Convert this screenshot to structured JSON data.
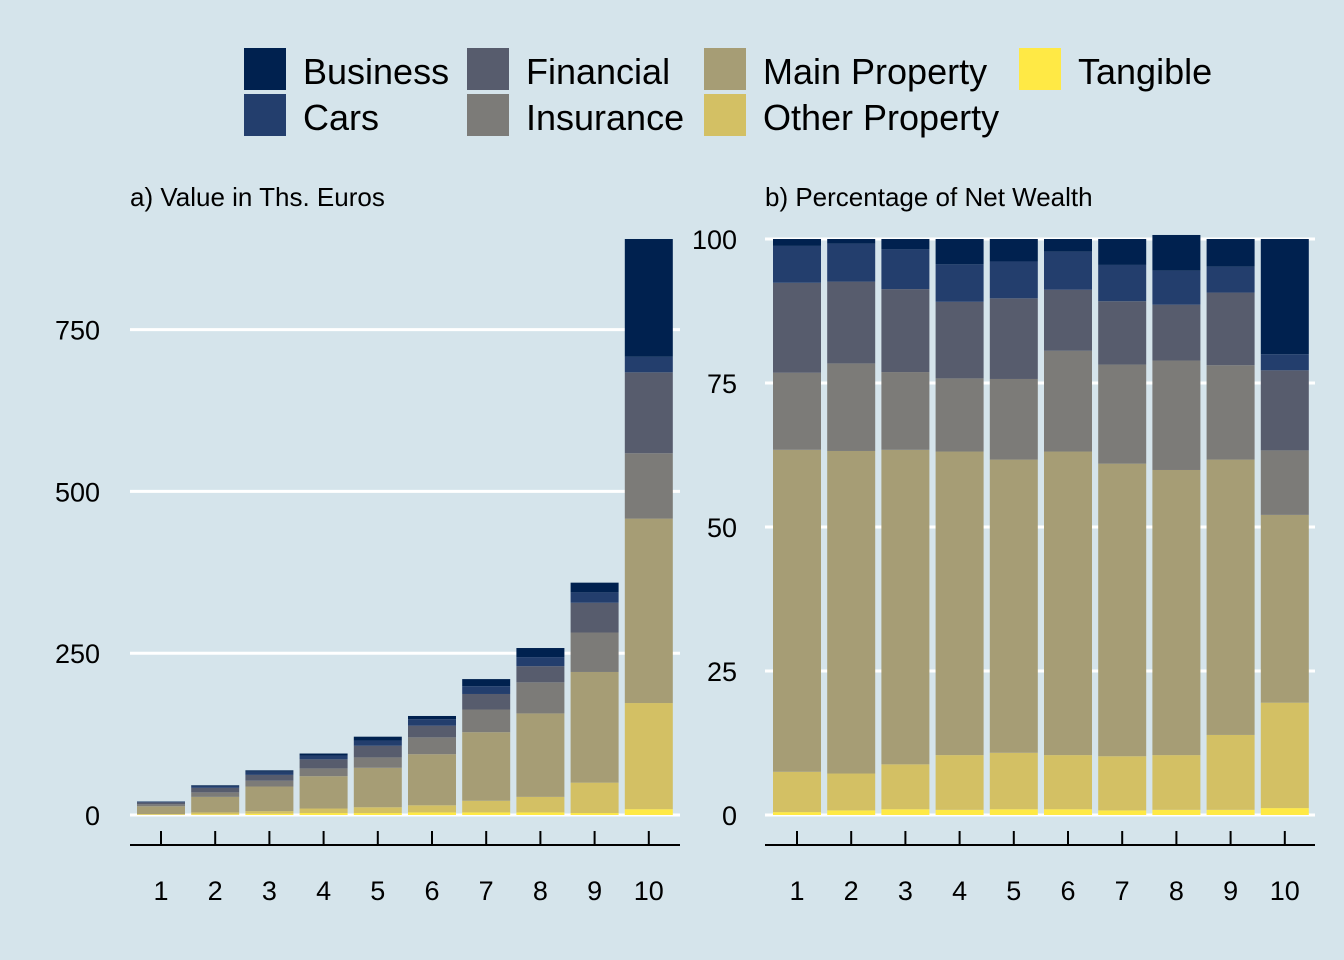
{
  "legend": {
    "items": [
      {
        "name": "Business",
        "color": "#00214f"
      },
      {
        "name": "Cars",
        "color": "#233e6d"
      },
      {
        "name": "Financial",
        "color": "#575c6d"
      },
      {
        "name": "Insurance",
        "color": "#7c7b78"
      },
      {
        "name": "Main Property",
        "color": "#a69d75"
      },
      {
        "name": "Other Property",
        "color": "#d3c064"
      },
      {
        "name": "Tangible",
        "color": "#ffe945"
      }
    ]
  },
  "chart_data": [
    {
      "type": "bar",
      "stacked": true,
      "title": "a) Value in Ths. Euros",
      "xlabel": "",
      "ylabel": "",
      "categories": [
        "1",
        "2",
        "3",
        "4",
        "5",
        "6",
        "7",
        "8",
        "9",
        "10"
      ],
      "ylim": [
        0,
        890
      ],
      "yticks": [
        0,
        250,
        500,
        750
      ],
      "yticklabels": [
        "0",
        "250",
        "500",
        "750"
      ],
      "grid": "horizontal",
      "legend": "top",
      "series": [
        {
          "name": "Tangible",
          "values": [
            0.5,
            1,
            2,
            3,
            3,
            4,
            4,
            4,
            3,
            9
          ]
        },
        {
          "name": "Other Property",
          "values": [
            1,
            3,
            4,
            7,
            9,
            11,
            18,
            24,
            47,
            164
          ]
        },
        {
          "name": "Main Property",
          "values": [
            12,
            24,
            38,
            50,
            61,
            79,
            106,
            129,
            171,
            285
          ]
        },
        {
          "name": "Insurance",
          "values": [
            3,
            7,
            9,
            12,
            16,
            26,
            35,
            48,
            61,
            101
          ]
        },
        {
          "name": "Financial",
          "values": [
            3,
            7,
            9,
            14,
            18,
            18,
            24,
            25,
            46,
            125
          ]
        },
        {
          "name": "Cars",
          "values": [
            1,
            3,
            5,
            6,
            8,
            10,
            12,
            14,
            16,
            24
          ]
        },
        {
          "name": "Business",
          "values": [
            0.5,
            1,
            2,
            3,
            6,
            5,
            11,
            14,
            15,
            182
          ]
        }
      ]
    },
    {
      "type": "bar",
      "stacked": true,
      "title": "b) Percentage of Net Wealth",
      "xlabel": "",
      "ylabel": "",
      "categories": [
        "1",
        "2",
        "3",
        "4",
        "5",
        "6",
        "7",
        "8",
        "9",
        "10"
      ],
      "ylim": [
        0,
        100
      ],
      "yticks": [
        0,
        25,
        50,
        75,
        100
      ],
      "yticklabels": [
        "0",
        "25",
        "50",
        "75",
        "100"
      ],
      "grid": "horizontal",
      "legend": "top",
      "series": [
        {
          "name": "Tangible",
          "values": [
            0.5,
            0.8,
            1.0,
            0.9,
            1.0,
            1.0,
            0.8,
            0.9,
            0.9,
            1.2
          ]
        },
        {
          "name": "Other Property",
          "values": [
            7.0,
            6.4,
            7.8,
            9.5,
            9.8,
            9.4,
            9.4,
            9.5,
            13.0,
            18.3
          ]
        },
        {
          "name": "Main Property",
          "values": [
            55.9,
            56.0,
            54.6,
            52.7,
            50.9,
            52.7,
            50.8,
            49.5,
            47.8,
            32.6
          ]
        },
        {
          "name": "Insurance",
          "values": [
            13.4,
            15.2,
            13.5,
            12.7,
            14.0,
            17.5,
            17.2,
            19.0,
            16.4,
            11.2
          ]
        },
        {
          "name": "Financial",
          "values": [
            15.6,
            14.2,
            14.4,
            13.3,
            14.0,
            10.6,
            11.0,
            9.7,
            12.6,
            13.9
          ]
        },
        {
          "name": "Cars",
          "values": [
            6.4,
            6.6,
            6.9,
            6.5,
            6.4,
            6.6,
            6.3,
            5.9,
            4.5,
            2.8
          ]
        },
        {
          "name": "Business",
          "values": [
            1.2,
            0.8,
            1.8,
            4.4,
            3.9,
            2.2,
            4.5,
            6.2,
            4.8,
            20.0
          ]
        }
      ]
    }
  ]
}
